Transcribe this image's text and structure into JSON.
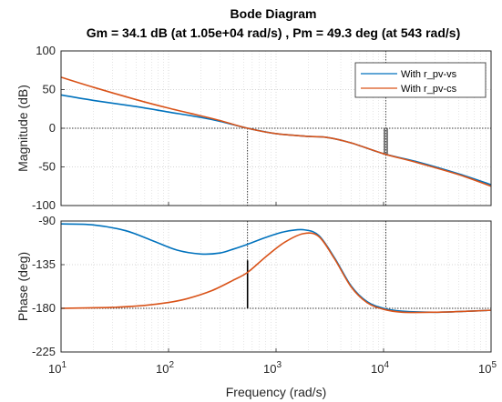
{
  "chart_data": [
    {
      "type": "line",
      "panel": "magnitude",
      "title": "Bode Diagram",
      "subtitle": "Gm = 34.1 dB (at 1.05e+04 rad/s) ,  Pm = 49.3 deg (at 543 rad/s)",
      "ylabel": "Magnitude (dB)",
      "xscale": "log",
      "xlim": [
        10,
        100000
      ],
      "ylim": [
        -100,
        100
      ],
      "yticks": [
        -100,
        -50,
        0,
        50,
        100
      ],
      "grid": true,
      "legend": {
        "placement": "top-right",
        "entries": [
          "With r_pv-vs",
          "With r_pv-cs"
        ]
      },
      "series": [
        {
          "name": "With r_pv-vs",
          "color": "#0072bd",
          "x": [
            10,
            20,
            50,
            100,
            200,
            300,
            543,
            1000,
            2000,
            3000,
            5000,
            10000,
            20000,
            50000,
            100000
          ],
          "y": [
            43,
            36,
            28,
            21,
            14,
            9,
            0,
            -7,
            -10.5,
            -12,
            -19,
            -33,
            -43,
            -59,
            -73
          ]
        },
        {
          "name": "With r_pv-cs",
          "color": "#d95319",
          "x": [
            10,
            20,
            50,
            100,
            200,
            300,
            543,
            1000,
            2000,
            3000,
            5000,
            10000,
            20000,
            50000,
            100000
          ],
          "y": [
            66,
            53,
            37,
            26,
            16,
            10,
            0,
            -7,
            -10.5,
            -12,
            -19,
            -33,
            -44,
            -60,
            -75
          ]
        }
      ],
      "annotations": [
        {
          "type": "reference-line",
          "value": 0,
          "orientation": "horizontal"
        },
        {
          "type": "crossover-marker",
          "x": 543
        },
        {
          "type": "gain-margin-marker",
          "x": 10500,
          "from": 0,
          "to": -34.1
        }
      ]
    },
    {
      "type": "line",
      "panel": "phase",
      "xlabel": "Frequency  (rad/s)",
      "ylabel": "Phase (deg)",
      "xscale": "log",
      "xlim": [
        10,
        100000
      ],
      "xticks": [
        "10",
        "10",
        "10",
        "10",
        "10"
      ],
      "xtick_exponents": [
        "1",
        "2",
        "3",
        "4",
        "5"
      ],
      "ylim": [
        -225,
        -90
      ],
      "yticks": [
        -225,
        -180,
        -135,
        -90
      ],
      "grid": true,
      "series": [
        {
          "name": "With r_pv-vs",
          "color": "#0072bd",
          "x": [
            10,
            20,
            40,
            70,
            120,
            200,
            300,
            400,
            543,
            800,
            1200,
            1800,
            2500,
            3500,
            5000,
            7000,
            10000,
            15000,
            30000,
            60000,
            100000
          ],
          "y": [
            -93,
            -94,
            -100,
            -110,
            -120,
            -124,
            -123,
            -119,
            -114,
            -107,
            -101,
            -99,
            -105,
            -128,
            -157,
            -173,
            -180,
            -183,
            -184,
            -183,
            -182
          ]
        },
        {
          "name": "With r_pv-cs",
          "color": "#d95319",
          "x": [
            10,
            30,
            60,
            100,
            150,
            250,
            400,
            543,
            800,
            1200,
            1800,
            2500,
            3500,
            5000,
            7000,
            10000,
            15000,
            30000,
            60000,
            100000
          ],
          "y": [
            -180,
            -179,
            -177,
            -174,
            -170,
            -162,
            -151,
            -143,
            -127,
            -112,
            -103,
            -106,
            -129,
            -158,
            -174,
            -181,
            -184,
            -184,
            -183,
            -182
          ]
        }
      ],
      "annotations": [
        {
          "type": "reference-line",
          "value": -180,
          "orientation": "horizontal"
        },
        {
          "type": "phase-margin-marker",
          "x": 543,
          "from": -180,
          "to": -130.7
        },
        {
          "type": "crossover-marker",
          "x": 10500
        }
      ]
    }
  ]
}
